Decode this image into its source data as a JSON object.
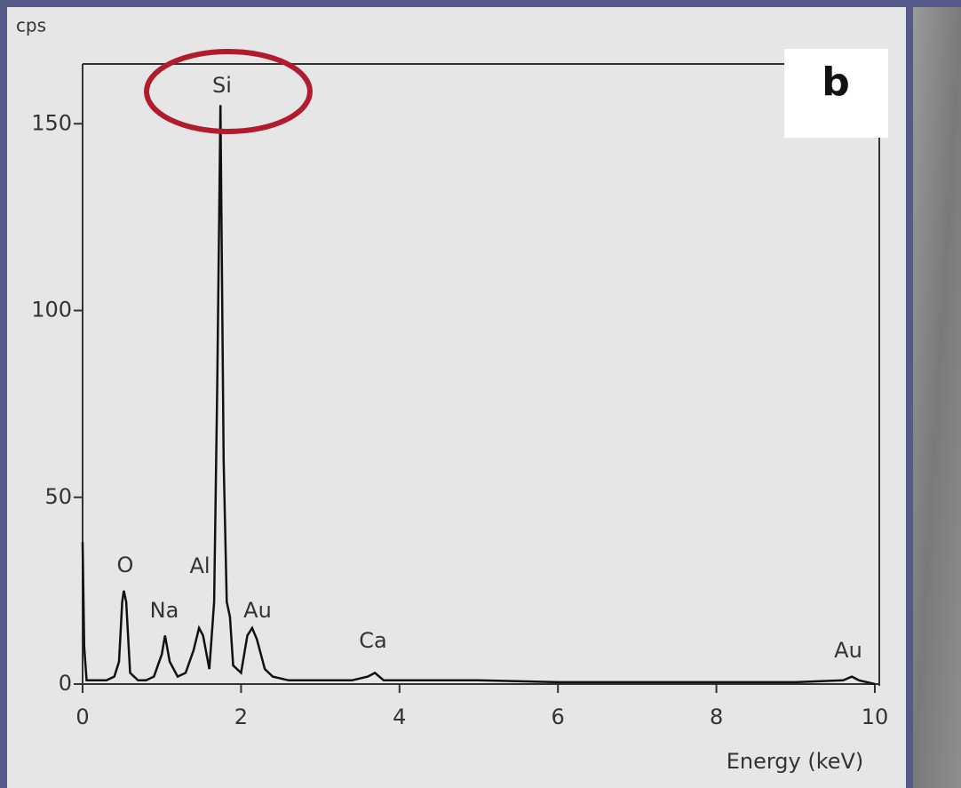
{
  "chart_data": {
    "type": "line",
    "y_label": "cps",
    "x_label": "Energy (keV)",
    "panel_label": "b",
    "annotations": [
      "Si",
      "O",
      "Na",
      "Al",
      "Au",
      "Ca",
      "Au"
    ],
    "x": [
      0,
      0.02,
      0.05,
      0.1,
      0.2,
      0.3,
      0.4,
      0.46,
      0.5,
      0.52,
      0.55,
      0.6,
      0.7,
      0.8,
      0.9,
      1.0,
      1.04,
      1.1,
      1.2,
      1.3,
      1.4,
      1.47,
      1.52,
      1.6,
      1.66,
      1.7,
      1.74,
      1.78,
      1.82,
      1.86,
      1.9,
      2.0,
      2.08,
      2.14,
      2.2,
      2.3,
      2.4,
      2.6,
      3.0,
      3.4,
      3.6,
      3.69,
      3.8,
      4.2,
      5,
      6,
      7,
      8,
      9,
      9.6,
      9.71,
      9.8,
      10
    ],
    "values": [
      38,
      10,
      1,
      1,
      1,
      1,
      2,
      6,
      22,
      25,
      22,
      3,
      1,
      1,
      2,
      8,
      13,
      6,
      2,
      3,
      9,
      15,
      13,
      4,
      22,
      80,
      155,
      60,
      22,
      18,
      5,
      3,
      13,
      15,
      12,
      4,
      2,
      1,
      1,
      1,
      2,
      3,
      1,
      1,
      1,
      0.5,
      0.5,
      0.5,
      0.5,
      1,
      2,
      1,
      0
    ],
    "color": "#111111",
    "xlim": [
      0,
      10
    ],
    "xticks": [
      0,
      2,
      4,
      6,
      8,
      10
    ],
    "ylim": [
      0,
      166
    ],
    "yticks": [
      0,
      50,
      100,
      150
    ]
  }
}
